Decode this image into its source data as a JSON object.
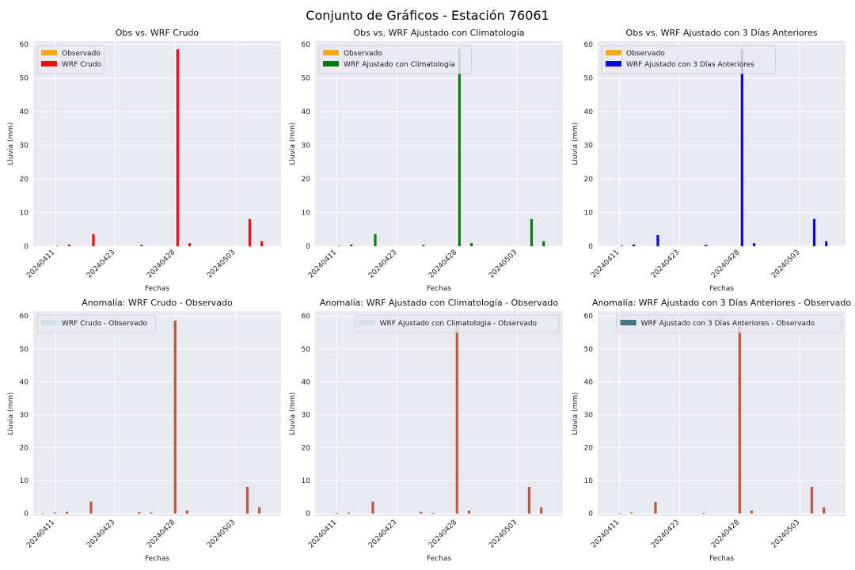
{
  "suptitle": "Conjunto de Gráficos - Estación 76061",
  "colors": {
    "observado": "#f5a623",
    "crudo": "#e8110e",
    "clim": "#0d7a10",
    "tres": "#0a0ae0",
    "anom_crudo_legend": "#d5dfe0",
    "anom_clim_legend": "#d5dfe0",
    "anom_tres_legend": "#3f7686",
    "anom_pos": "#b85a3e",
    "anom_neg": "#d7e1e2",
    "panel_bg": "#e9e9f1",
    "grid": "#ffffff"
  },
  "chart_data": [
    {
      "type": "bar",
      "title": "Obs vs. WRF Crudo",
      "xlabel": "Fechas",
      "ylabel": "Lluvia (mm)",
      "ylim": [
        0,
        61
      ],
      "yticks": [
        0,
        10,
        20,
        30,
        40,
        50,
        60
      ],
      "xticks": [
        "20240411",
        "20240423",
        "20240428",
        "20240503"
      ],
      "xtick_positions": [
        1,
        6,
        11,
        16
      ],
      "n": 20,
      "grid": true,
      "legend": "top-left",
      "series": [
        {
          "name": "Observado",
          "color_key": "observado",
          "offset": -0.2,
          "values": [
            0,
            0,
            0,
            0,
            0,
            0,
            0,
            0,
            0,
            0,
            0,
            0,
            0,
            0,
            0,
            0,
            0,
            0,
            0,
            0
          ]
        },
        {
          "name": "WRF Crudo",
          "color_key": "crudo",
          "offset": 0.2,
          "values": [
            0,
            0.1,
            0.5,
            0,
            3.6,
            0,
            0,
            0,
            0.4,
            0,
            0,
            58.6,
            0.9,
            0,
            0,
            0,
            0,
            8.1,
            1.5,
            0
          ]
        }
      ]
    },
    {
      "type": "bar",
      "title": "Obs vs. WRF Ajustado con Climatología",
      "xlabel": "Fechas",
      "ylabel": "Lluvia (mm)",
      "ylim": [
        0,
        61
      ],
      "yticks": [
        0,
        10,
        20,
        30,
        40,
        50,
        60
      ],
      "xticks": [
        "20240411",
        "20240423",
        "20240428",
        "20240503"
      ],
      "xtick_positions": [
        1,
        6,
        11,
        16
      ],
      "n": 20,
      "grid": true,
      "legend": "top-left",
      "series": [
        {
          "name": "Observado",
          "color_key": "observado",
          "offset": -0.2,
          "values": [
            0,
            0,
            0,
            0,
            0,
            0,
            0,
            0,
            0,
            0,
            0,
            0,
            0,
            0,
            0,
            0,
            0,
            0,
            0,
            0
          ]
        },
        {
          "name": "WRF Ajustado con Climatologia",
          "color_key": "clim",
          "offset": 0.2,
          "values": [
            0,
            0.1,
            0.5,
            0,
            3.6,
            0,
            0,
            0,
            0.4,
            0,
            0,
            58.6,
            0.9,
            0,
            0,
            0,
            0,
            8.1,
            1.5,
            0
          ]
        }
      ]
    },
    {
      "type": "bar",
      "title": "Obs vs. WRF Ajustado con 3 Días Anteriores",
      "xlabel": "Fechas",
      "ylabel": "Lluvia (mm)",
      "ylim": [
        0,
        61
      ],
      "yticks": [
        0,
        10,
        20,
        30,
        40,
        50,
        60
      ],
      "xticks": [
        "20240411",
        "20240423",
        "20240428",
        "20240503"
      ],
      "xtick_positions": [
        1,
        6,
        11,
        16
      ],
      "n": 20,
      "grid": true,
      "legend": "top-left",
      "series": [
        {
          "name": "Observado",
          "color_key": "observado",
          "offset": -0.2,
          "values": [
            0,
            0,
            0,
            0,
            0,
            0,
            0,
            0,
            0,
            0,
            0,
            0,
            0,
            0,
            0,
            0,
            0,
            0,
            0,
            0
          ]
        },
        {
          "name": "WRF Ajustado con 3 Días Anteriores",
          "color_key": "tres",
          "offset": 0.2,
          "values": [
            0,
            0.1,
            0.5,
            0,
            3.3,
            0,
            0,
            0,
            0.4,
            0,
            0,
            58.6,
            0.9,
            0,
            0,
            0,
            0,
            8.1,
            1.5,
            0
          ]
        }
      ]
    },
    {
      "type": "bar",
      "title": "Anomalía: WRF Crudo - Observado",
      "xlabel": "Fechas",
      "ylabel": "Lluvia (mm)",
      "ylim": [
        -0.8,
        61.5
      ],
      "yticks": [
        0,
        10,
        20,
        30,
        40,
        50,
        60
      ],
      "xticks": [
        "20240411",
        "20240423",
        "20240428",
        "20240503"
      ],
      "xtick_positions": [
        1,
        6,
        11,
        16
      ],
      "n": 20,
      "grid": true,
      "legend": "top-left",
      "legend_label": "WRF Crudo - Observado",
      "legend_color_key": "anom_crudo_legend",
      "series": [
        {
          "name": "WRF Crudo - Observado",
          "offset": 0,
          "values": [
            0.1,
            0.3,
            0.5,
            0,
            3.6,
            0,
            0,
            0,
            0.4,
            0.3,
            0,
            58.6,
            0.9,
            0,
            0,
            0,
            0,
            8.1,
            1.9,
            0
          ]
        }
      ]
    },
    {
      "type": "bar",
      "title": "Anomalía: WRF Ajustado con Climatología - Observado",
      "xlabel": "Fechas",
      "ylabel": "Lluvia (mm)",
      "ylim": [
        -0.8,
        61.5
      ],
      "yticks": [
        0,
        10,
        20,
        30,
        40,
        50,
        60
      ],
      "xticks": [
        "20240411",
        "20240423",
        "20240428",
        "20240503"
      ],
      "xtick_positions": [
        1,
        6,
        11,
        16
      ],
      "n": 20,
      "grid": true,
      "legend": "top-right",
      "legend_label": "WRF Ajustado con Climatologia - Observado",
      "legend_color_key": "anom_clim_legend",
      "series": [
        {
          "name": "WRF Ajustado con Climatologia - Observado",
          "offset": 0,
          "values": [
            0,
            0.2,
            0.3,
            0,
            3.6,
            0,
            0,
            0,
            0.5,
            0.2,
            0,
            58.6,
            0.9,
            0,
            0,
            0,
            0,
            8.1,
            1.9,
            0
          ]
        }
      ]
    },
    {
      "type": "bar",
      "title": "Anomalía: WRF Ajustado con 3 Días Anteriores - Observado",
      "xlabel": "Fechas",
      "ylabel": "Lluvia (mm)",
      "ylim": [
        -0.8,
        61.5
      ],
      "yticks": [
        0,
        10,
        20,
        30,
        40,
        50,
        60
      ],
      "xticks": [
        "20240411",
        "20240423",
        "20240428",
        "20240503"
      ],
      "xtick_positions": [
        1,
        6,
        11,
        16
      ],
      "n": 20,
      "grid": true,
      "legend": "top-right",
      "legend_label": "WRF Ajustado con 3 Días Anteriores - Observado",
      "legend_color_key": "anom_tres_legend",
      "series": [
        {
          "name": "WRF Ajustado con 3 Días Anteriores - Observado",
          "offset": 0,
          "values": [
            0,
            0.1,
            0.3,
            0,
            3.5,
            0,
            0,
            0,
            0.2,
            0,
            0,
            58.6,
            0.9,
            0,
            0,
            0,
            0,
            8.1,
            1.9,
            0
          ]
        }
      ]
    }
  ]
}
